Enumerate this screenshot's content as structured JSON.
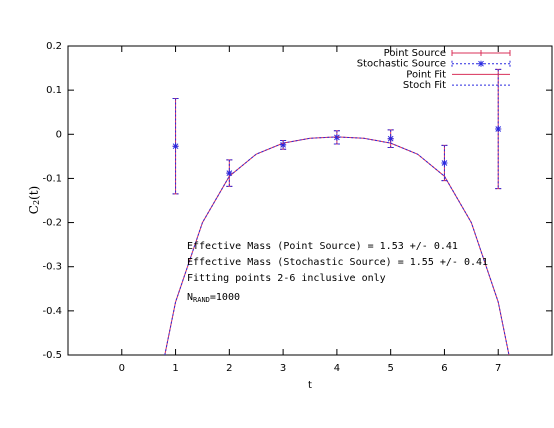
{
  "chart_data": {
    "type": "errorbar",
    "xlabel": "t",
    "ylabel": {
      "text": "C",
      "sub": "2",
      "rest": "(t)"
    },
    "xlim": [
      -1,
      8
    ],
    "xticks": [
      0,
      1,
      2,
      3,
      4,
      5,
      6,
      7
    ],
    "ylim": [
      -0.5,
      0.2
    ],
    "yticks": [
      0.2,
      0.1,
      0,
      -0.1,
      -0.2,
      -0.3,
      -0.4,
      -0.5
    ],
    "legend": "top-right",
    "series": [
      {
        "name": "Point Source",
        "kind": "points-plus",
        "color": "#d8305a",
        "x": [
          1,
          2,
          3,
          4,
          5,
          6,
          7
        ],
        "values": [
          -0.027,
          -0.088,
          -0.024,
          -0.007,
          -0.01,
          -0.065,
          0.012
        ],
        "errors": [
          0.108,
          0.03,
          0.01,
          0.015,
          0.02,
          0.04,
          0.135
        ]
      },
      {
        "name": "Stochastic Source",
        "kind": "points-star",
        "color": "#2a2ae0",
        "x": [
          1,
          2,
          3,
          4,
          5,
          6,
          7
        ],
        "values": [
          -0.027,
          -0.088,
          -0.024,
          -0.007,
          -0.01,
          -0.065,
          0.012
        ],
        "errors": [
          0.108,
          0.03,
          0.01,
          0.015,
          0.02,
          0.04,
          0.135
        ]
      },
      {
        "name": "Point Fit",
        "kind": "line-solid",
        "color": "#d8305a",
        "x": [
          0.8,
          1,
          1.5,
          2,
          2.5,
          3,
          3.5,
          4,
          4.5,
          5,
          5.5,
          6,
          6.5,
          7,
          7.2
        ],
        "values": [
          -0.5,
          -0.38,
          -0.2,
          -0.095,
          -0.045,
          -0.02,
          -0.009,
          -0.006,
          -0.009,
          -0.02,
          -0.045,
          -0.095,
          -0.2,
          -0.38,
          -0.5
        ]
      },
      {
        "name": "Stoch Fit",
        "kind": "line-dotted",
        "color": "#2a2ae0",
        "x": [
          0.8,
          1,
          1.5,
          2,
          2.5,
          3,
          3.5,
          4,
          4.5,
          5,
          5.5,
          6,
          6.5,
          7,
          7.2
        ],
        "values": [
          -0.5,
          -0.38,
          -0.2,
          -0.095,
          -0.045,
          -0.02,
          -0.009,
          -0.006,
          -0.009,
          -0.02,
          -0.045,
          -0.095,
          -0.2,
          -0.38,
          -0.5
        ]
      }
    ],
    "annotations": [
      {
        "text": "Effective Mass (Point Source) = 1.53 +/- 0.41"
      },
      {
        "text": "Effective Mass (Stochastic Source) = 1.55 +/- 0.41"
      },
      {
        "text": "Fitting points 2-6 inclusive only"
      },
      {
        "text": "N",
        "sub": "RAND",
        "rest": "=1000"
      }
    ]
  }
}
